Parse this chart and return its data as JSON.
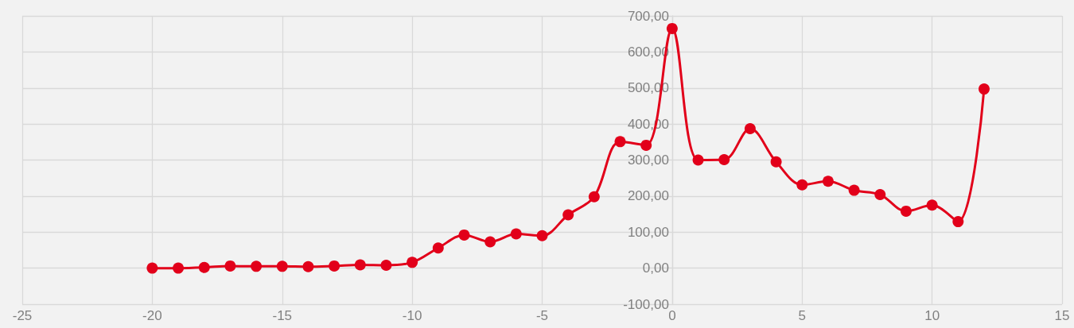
{
  "chart_data": {
    "type": "line",
    "x": [
      -20,
      -19,
      -18,
      -17,
      -16,
      -15,
      -14,
      -13,
      -12,
      -11,
      -10,
      -9,
      -8,
      -7,
      -6,
      -5,
      -4,
      -3,
      -2,
      -1,
      0,
      1,
      2,
      3,
      4,
      5,
      6,
      7,
      8,
      9,
      10,
      11,
      12
    ],
    "series": [
      {
        "color": "#e2001a",
        "values": [
          0,
          0,
          2,
          6,
          5,
          5,
          4,
          6,
          9,
          8,
          16,
          56,
          92,
          73,
          95,
          90,
          148,
          198,
          351,
          341,
          665,
          300,
          301,
          387,
          295,
          231,
          241,
          216,
          204,
          158,
          175,
          129,
          497
        ]
      }
    ],
    "xlim": [
      -25,
      15
    ],
    "xticks": [
      -25,
      -20,
      -15,
      -10,
      -5,
      0,
      5,
      10,
      15
    ],
    "ylim": [
      -100,
      700
    ],
    "yticks": [
      {
        "value": -100,
        "label": "-100,00"
      },
      {
        "value": 0,
        "label": "0,00"
      },
      {
        "value": 100,
        "label": "100,00"
      },
      {
        "value": 200,
        "label": "200,00"
      },
      {
        "value": 300,
        "label": "300,00"
      },
      {
        "value": 400,
        "label": "400,00"
      },
      {
        "value": 500,
        "label": "500,00"
      },
      {
        "value": 600,
        "label": "600,00"
      },
      {
        "value": 700,
        "label": "700,00"
      }
    ],
    "grid": true,
    "marker": "circle",
    "line_style": "solid"
  }
}
